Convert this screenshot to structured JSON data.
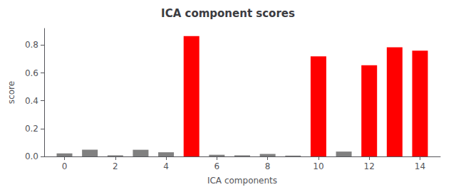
{
  "chart_data": {
    "type": "bar",
    "title": "ICA component scores",
    "xlabel": "ICA components",
    "ylabel": "score",
    "x": [
      0,
      1,
      2,
      3,
      4,
      5,
      6,
      7,
      8,
      9,
      10,
      11,
      12,
      13,
      14
    ],
    "values": [
      0.022,
      0.048,
      0.008,
      0.048,
      0.03,
      0.865,
      0.012,
      0.008,
      0.018,
      0.006,
      0.72,
      0.035,
      0.655,
      0.785,
      0.76
    ],
    "colors": [
      "#808080",
      "#808080",
      "#808080",
      "#808080",
      "#808080",
      "#ff0000",
      "#808080",
      "#808080",
      "#808080",
      "#808080",
      "#ff0000",
      "#808080",
      "#ff0000",
      "#ff0000",
      "#ff0000"
    ],
    "xlim": [
      -0.8,
      14.8
    ],
    "xticks": [
      0,
      2,
      4,
      6,
      8,
      10,
      12,
      14
    ],
    "ylim": [
      0,
      0.92
    ],
    "yticks": [
      {
        "value": 0,
        "label": "0.0"
      },
      {
        "value": 0.2,
        "label": "0.2"
      },
      {
        "value": 0.4,
        "label": "0.4"
      },
      {
        "value": 0.6,
        "label": "0.6"
      },
      {
        "value": 0.8,
        "label": "0.8"
      }
    ],
    "grid": false
  }
}
